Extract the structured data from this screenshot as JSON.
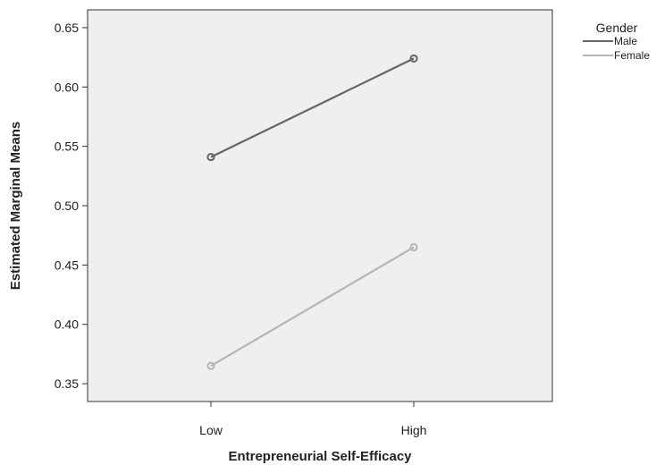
{
  "chart_data": {
    "type": "line",
    "title": "",
    "xlabel": "Entrepreneurial Self-Efficacy",
    "ylabel": "Estimated Marginal Means",
    "categories": [
      "Low",
      "High"
    ],
    "ylim": [
      0.335,
      0.665
    ],
    "yticks": [
      "0.35",
      "0.40",
      "0.45",
      "0.50",
      "0.55",
      "0.60",
      "0.65"
    ],
    "grid": false,
    "legend": {
      "title": "Gender",
      "placement": "top-right outside"
    },
    "series": [
      {
        "name": "Male",
        "values": [
          0.541,
          0.624
        ],
        "color": "#666666"
      },
      {
        "name": "Female",
        "values": [
          0.365,
          0.465
        ],
        "color": "#b5b5b5"
      }
    ],
    "plot_background": "#efeff1"
  }
}
